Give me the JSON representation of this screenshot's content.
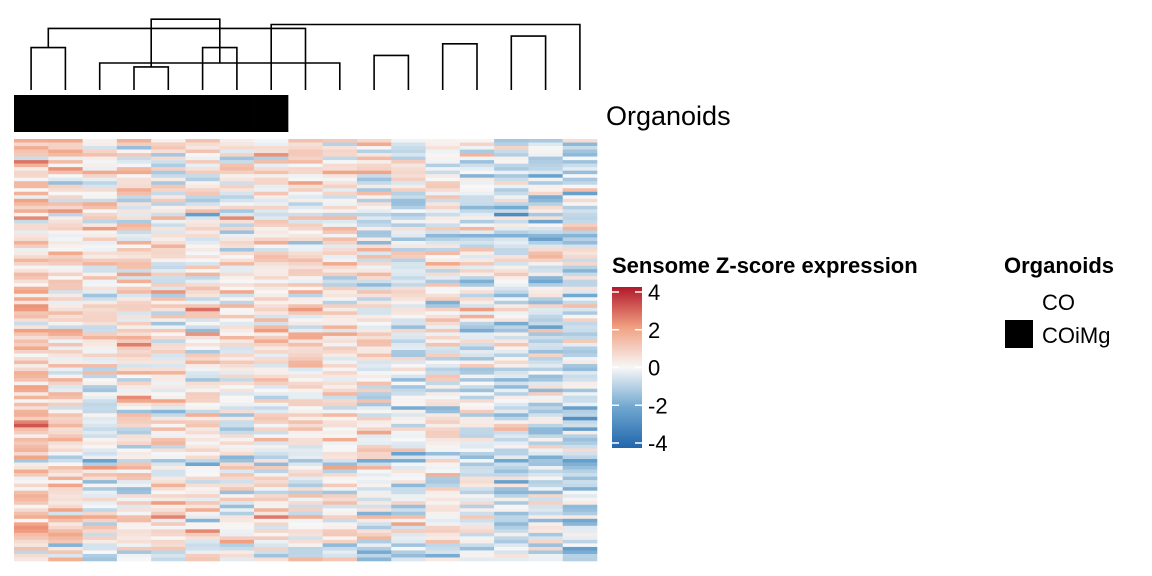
{
  "chart_data": {
    "type": "heatmap",
    "n_columns": 17,
    "n_rows": 120,
    "annotation": {
      "track_label": "Organoids",
      "column_groups": [
        "COiMg",
        "COiMg",
        "COiMg",
        "COiMg",
        "COiMg",
        "COiMg",
        "COiMg",
        "COiMg",
        "CO",
        "CO",
        "CO",
        "CO",
        "CO",
        "CO",
        "CO",
        "CO",
        "CO"
      ],
      "legend_title": "Organoids",
      "legend_items": [
        {
          "label": "CO",
          "color": "#FFFFFF"
        },
        {
          "label": "COiMg",
          "color": "#000000"
        }
      ]
    },
    "colorbar": {
      "title": "Sensome Z-score expression",
      "ticks": [
        "4",
        "2",
        "0",
        "-2",
        "-4"
      ],
      "range": [
        -4,
        4
      ],
      "colors": {
        "low": "#2166AC",
        "mid": "#F7F7F7",
        "high": "#B2182B"
      }
    },
    "dendrogram": {
      "merges": [
        [
          0,
          1,
          0.55
        ],
        [
          3,
          4,
          0.3
        ],
        [
          2,
          9,
          0.35
        ],
        [
          10,
          11,
          0.45
        ],
        [
          5,
          6,
          0.55
        ],
        [
          12,
          13,
          0.6
        ],
        [
          17,
          8,
          0.8
        ],
        [
          14,
          15,
          0.7
        ],
        [
          7,
          16,
          0.85
        ],
        [
          18,
          19,
          0.92
        ]
      ]
    },
    "leaf_merge_check": [
      0,
      1,
      3,
      4,
      2,
      5,
      6,
      7,
      8,
      9,
      10,
      11,
      12,
      13,
      14,
      15,
      16
    ],
    "column_profiles": [
      0.9,
      0.7,
      0.1,
      0.35,
      0.25,
      0.3,
      0.1,
      0.4,
      0.35,
      0.2,
      0.15,
      -0.15,
      0.1,
      -0.05,
      -0.35,
      -0.45,
      -0.6
    ]
  }
}
